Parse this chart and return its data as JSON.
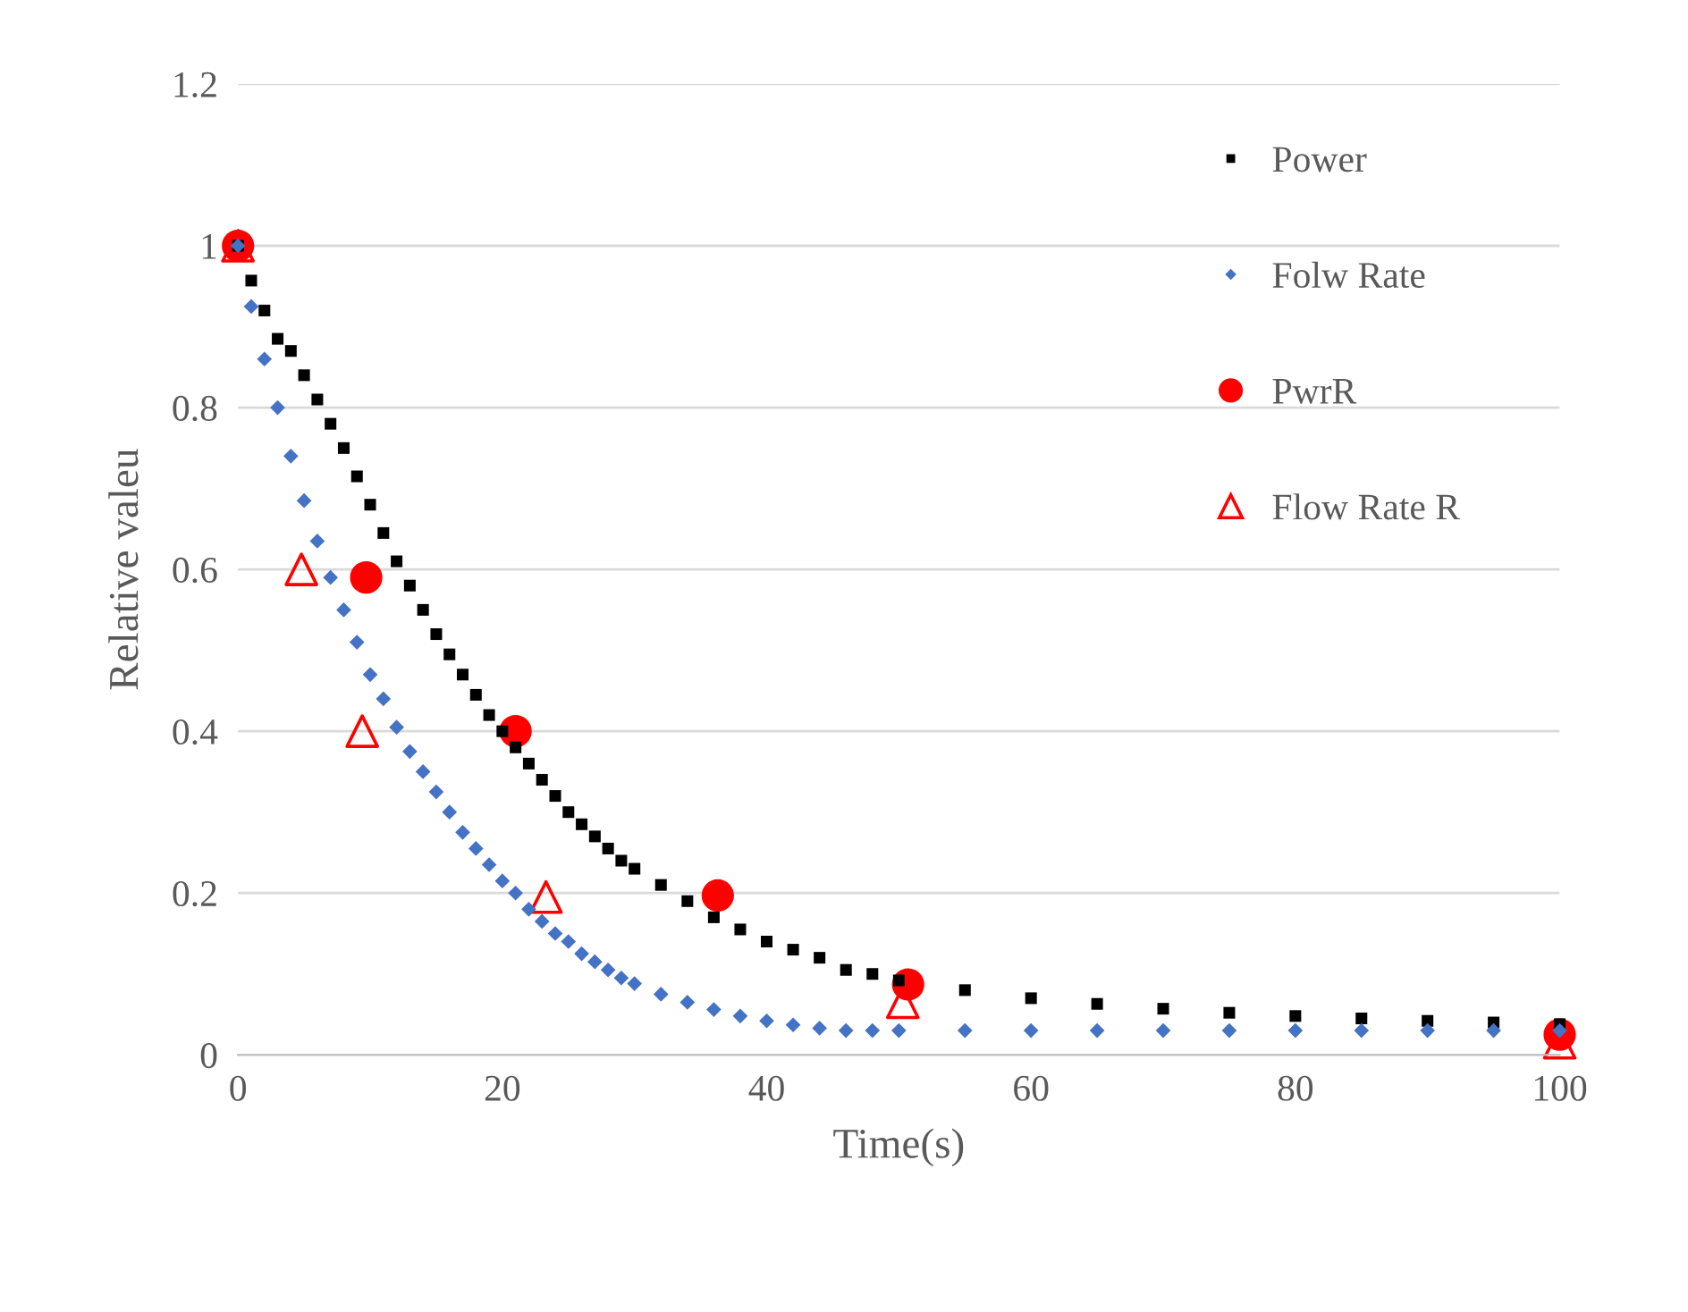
{
  "chart_data": {
    "type": "scatter",
    "xlabel": "Time(s)",
    "ylabel": "Relative valeu",
    "xlim": [
      0,
      100
    ],
    "xticks": [
      0,
      20,
      40,
      60,
      80,
      100
    ],
    "ylim": [
      0,
      1.2
    ],
    "yticks": [
      0,
      0.2,
      0.4,
      0.6,
      0.8,
      1,
      1.2
    ],
    "grid": "y",
    "legend": "right",
    "series": [
      {
        "name": "Power",
        "color": "#000000",
        "marker": "square",
        "x": [
          0,
          1,
          2,
          3,
          4,
          5,
          6,
          7,
          8,
          9,
          10,
          11,
          12,
          13,
          14,
          15,
          16,
          17,
          18,
          19,
          20,
          21,
          22,
          23,
          24,
          25,
          26,
          27,
          28,
          29,
          30,
          32,
          34,
          36,
          38,
          40,
          42,
          44,
          46,
          48,
          50,
          55,
          60,
          65,
          70,
          75,
          80,
          85,
          90,
          95,
          100
        ],
        "values": [
          1.0,
          0.957,
          0.92,
          0.885,
          0.87,
          0.84,
          0.81,
          0.78,
          0.75,
          0.715,
          0.68,
          0.645,
          0.61,
          0.58,
          0.55,
          0.52,
          0.495,
          0.47,
          0.445,
          0.42,
          0.4,
          0.38,
          0.36,
          0.34,
          0.32,
          0.3,
          0.285,
          0.27,
          0.255,
          0.24,
          0.23,
          0.21,
          0.19,
          0.17,
          0.155,
          0.14,
          0.13,
          0.12,
          0.105,
          0.1,
          0.092,
          0.08,
          0.07,
          0.063,
          0.057,
          0.052,
          0.048,
          0.045,
          0.042,
          0.04,
          0.038
        ]
      },
      {
        "name": "Folw Rate",
        "color": "#4472c4",
        "marker": "diamond",
        "x": [
          0,
          1,
          2,
          3,
          4,
          5,
          6,
          7,
          8,
          9,
          10,
          11,
          12,
          13,
          14,
          15,
          16,
          17,
          18,
          19,
          20,
          21,
          22,
          23,
          24,
          25,
          26,
          27,
          28,
          29,
          30,
          32,
          34,
          36,
          38,
          40,
          42,
          44,
          46,
          48,
          50,
          55,
          60,
          65,
          70,
          75,
          80,
          85,
          90,
          95,
          100
        ],
        "values": [
          1.0,
          0.925,
          0.86,
          0.8,
          0.74,
          0.685,
          0.635,
          0.59,
          0.55,
          0.51,
          0.47,
          0.44,
          0.405,
          0.375,
          0.35,
          0.325,
          0.3,
          0.275,
          0.255,
          0.235,
          0.215,
          0.2,
          0.18,
          0.165,
          0.15,
          0.14,
          0.125,
          0.115,
          0.105,
          0.095,
          0.088,
          0.075,
          0.065,
          0.056,
          0.048,
          0.042,
          0.037,
          0.033,
          0.03,
          0.03,
          0.03,
          0.03,
          0.03,
          0.03,
          0.03,
          0.03,
          0.03,
          0.03,
          0.03,
          0.03,
          0.03
        ]
      },
      {
        "name": "PwrR",
        "color": "#ff0000",
        "marker": "circle",
        "x": [
          0,
          9.7,
          21,
          36.3,
          50.7,
          100
        ],
        "values": [
          1.0,
          0.59,
          0.4,
          0.197,
          0.087,
          0.025
        ]
      },
      {
        "name": "Flow Rate R",
        "color": "#ff0000",
        "marker": "triangle",
        "x": [
          0,
          4.8,
          9.4,
          23.3,
          50.3,
          100
        ],
        "values": [
          1.0,
          0.6,
          0.4,
          0.195,
          0.065,
          0.015
        ]
      }
    ]
  }
}
